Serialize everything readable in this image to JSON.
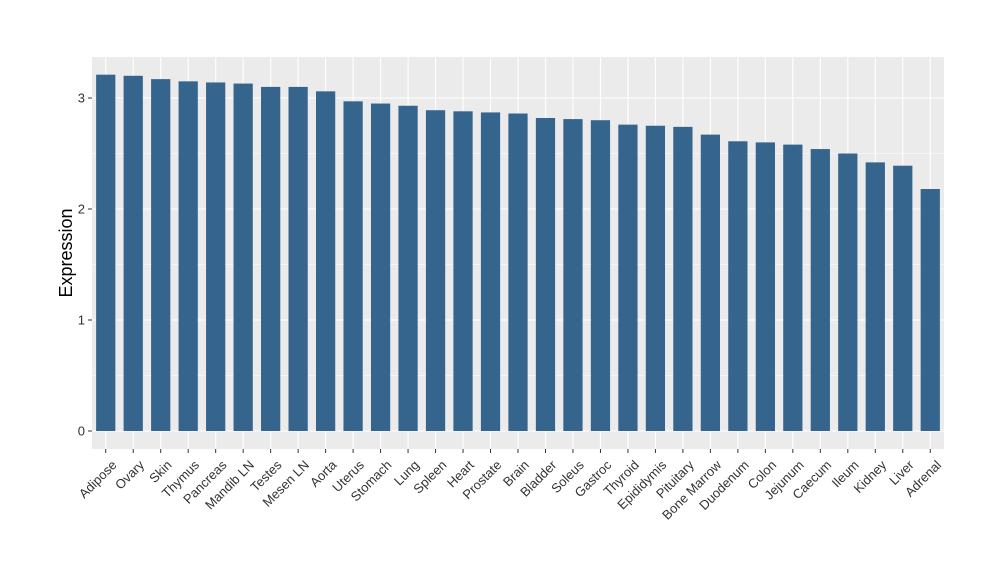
{
  "chart_data": {
    "type": "bar",
    "ylabel": "Expression",
    "xlabel": "",
    "ylim": [
      0,
      3.3
    ],
    "yticks": [
      0,
      1,
      2,
      3
    ],
    "grid": true,
    "background_color": "#EBEBEB",
    "bar_color": "#35648C",
    "categories": [
      "Adipose",
      "Ovary",
      "Skin",
      "Thymus",
      "Pancreas",
      "Mandib LN",
      "Testes",
      "Mesen LN",
      "Aorta",
      "Uterus",
      "Stomach",
      "Lung",
      "Spleen",
      "Heart",
      "Prostate",
      "Brain",
      "Bladder",
      "Soleus",
      "Gastroc",
      "Thyroid",
      "Epididymis",
      "Pituitary",
      "Bone Marrow",
      "Duodenum",
      "Colon",
      "Jejunum",
      "Caecum",
      "Ileum",
      "Kidney",
      "Liver",
      "Adrenal"
    ],
    "values": [
      3.21,
      3.2,
      3.17,
      3.15,
      3.14,
      3.13,
      3.1,
      3.1,
      3.06,
      2.97,
      2.95,
      2.93,
      2.89,
      2.88,
      2.87,
      2.86,
      2.82,
      2.81,
      2.8,
      2.76,
      2.75,
      2.74,
      2.67,
      2.61,
      2.6,
      2.58,
      2.54,
      2.5,
      2.42,
      2.39,
      2.18
    ]
  }
}
